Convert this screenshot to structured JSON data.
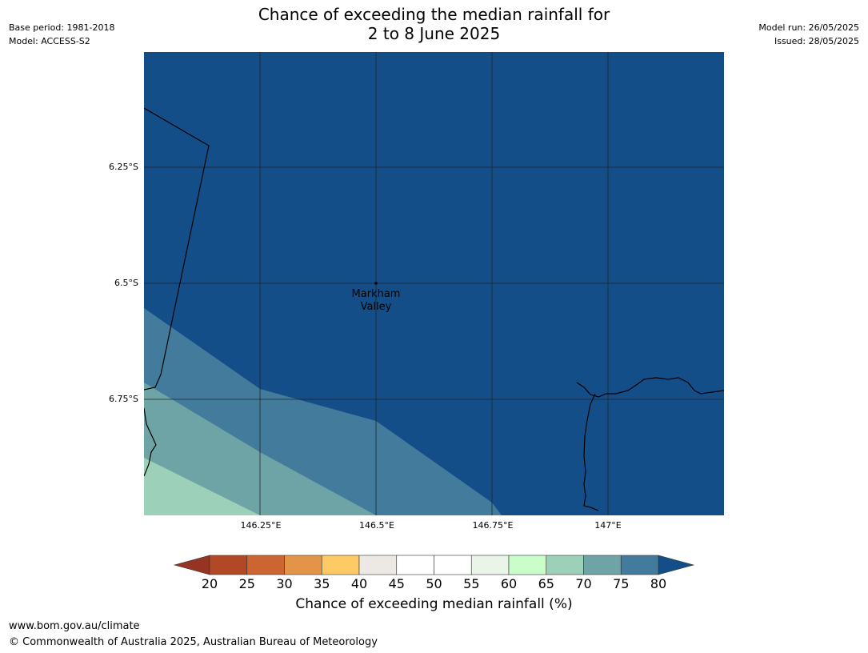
{
  "header": {
    "title_line1": "Chance of exceeding the median rainfall for",
    "title_line2": "2 to 8 June 2025",
    "base_period": "Base period: 1981-2018",
    "model": "Model: ACCESS-S2",
    "model_run": "Model run: 26/05/2025",
    "issued": "Issued: 28/05/2025"
  },
  "map": {
    "lat_labels": [
      "6.25°S",
      "6.5°S",
      "6.75°S"
    ],
    "lon_labels": [
      "146.25°E",
      "146.5°E",
      "146.75°E",
      "147°E"
    ],
    "places": [
      {
        "name_line1": "Markham",
        "name_line2": "Valley"
      }
    ],
    "colors": {
      "over_80": "#144e89",
      "75_80": "#427b9b",
      "70_75": "#6fa4a6",
      "65_70": "#9dd0b8"
    }
  },
  "colorbar": {
    "label": "Chance of exceeding median rainfall (%)",
    "ticks": [
      "20",
      "25",
      "30",
      "35",
      "40",
      "45",
      "50",
      "55",
      "60",
      "65",
      "70",
      "75",
      "80"
    ],
    "under_color": "#953422",
    "over_color": "#144e89",
    "bins": [
      "#b24826",
      "#cd6533",
      "#e39449",
      "#fdca66",
      "#ece9e4",
      "#ffffff",
      "#ffffff",
      "#e9f5e7",
      "#c9fdc9",
      "#9dd0b8",
      "#6fa4a6",
      "#427b9b"
    ]
  },
  "footer": {
    "url": "www.bom.gov.au/climate",
    "copyright": "© Commonwealth of Australia 2025, Australian Bureau of Meteorology"
  }
}
